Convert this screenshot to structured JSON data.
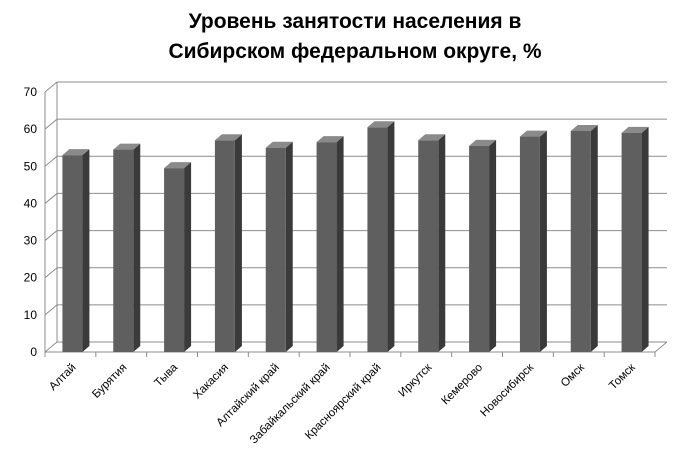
{
  "chart_data": {
    "type": "bar",
    "title_lines": [
      "Уровень занятости населения в",
      "Сибирском федеральном округе, %"
    ],
    "categories": [
      "Алтай",
      "Бурятия",
      "Тыва",
      "Хакасия",
      "Алтайский край",
      "Забайкальский край",
      "Красноярский край",
      "Иркутск",
      "Кемерово",
      "Новосибирск",
      "Омск",
      "Томск"
    ],
    "values": [
      53,
      54.5,
      49.5,
      57,
      55,
      56.5,
      60.5,
      57,
      55.5,
      58,
      59.5,
      59
    ],
    "yticks": [
      0,
      10,
      20,
      30,
      40,
      50,
      60,
      70
    ],
    "ylim": [
      0,
      70
    ],
    "grid": true,
    "bar_color": "#5f5f5f",
    "bar_side_color": "#3a3a3a",
    "bar_top_color": "#8a8a8a",
    "grid_color": "#8c8c8c"
  }
}
